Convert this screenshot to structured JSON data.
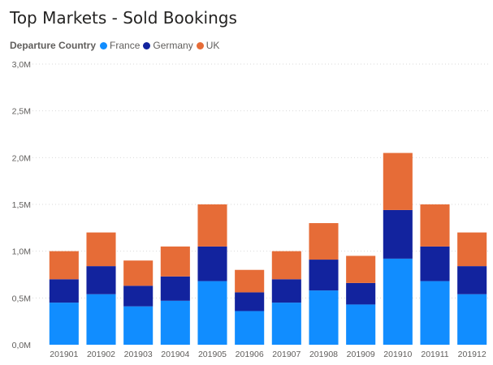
{
  "chart_data": {
    "type": "bar",
    "stacked": true,
    "title": "Top Markets - Sold Bookings",
    "legend": {
      "title": "Departure Country",
      "placement": "top-left"
    },
    "categories": [
      "201901",
      "201902",
      "201903",
      "201904",
      "201905",
      "201906",
      "201907",
      "201908",
      "201909",
      "201910",
      "201911",
      "201912"
    ],
    "series": [
      {
        "name": "France",
        "color": "#118DFF",
        "values": [
          0.45,
          0.54,
          0.41,
          0.47,
          0.68,
          0.36,
          0.45,
          0.58,
          0.43,
          0.92,
          0.68,
          0.54
        ]
      },
      {
        "name": "Germany",
        "color": "#12239E",
        "values": [
          0.25,
          0.3,
          0.22,
          0.26,
          0.37,
          0.2,
          0.25,
          0.33,
          0.23,
          0.52,
          0.37,
          0.3
        ]
      },
      {
        "name": "UK",
        "color": "#E66C37",
        "values": [
          0.3,
          0.36,
          0.27,
          0.32,
          0.45,
          0.24,
          0.3,
          0.39,
          0.29,
          0.61,
          0.45,
          0.36
        ]
      }
    ],
    "y_unit": "M",
    "ylim": [
      0,
      3.0
    ],
    "yticks": [
      "0,0M",
      "0,5M",
      "1,0M",
      "1,5M",
      "2,0M",
      "2,5M",
      "3,0M"
    ],
    "grid": true
  }
}
